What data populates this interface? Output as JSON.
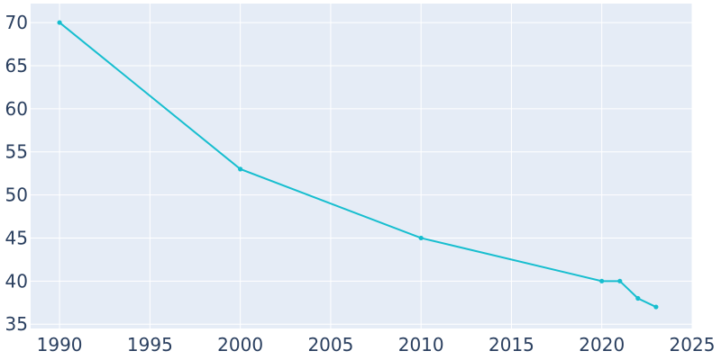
{
  "chart_data": {
    "type": "line",
    "title": "",
    "xlabel": "",
    "ylabel": "",
    "x": [
      1990,
      2000,
      2010,
      2020,
      2021,
      2022,
      2023
    ],
    "series": [
      {
        "values": [
          70,
          53,
          45,
          40,
          40,
          38,
          37
        ]
      }
    ],
    "xlim": [
      1988.4,
      2025
    ],
    "ylim": [
      34.5,
      72.2
    ],
    "xticks": [
      1990,
      1995,
      2000,
      2005,
      2010,
      2015,
      2020,
      2025
    ],
    "yticks": [
      35,
      40,
      45,
      50,
      55,
      60,
      65,
      70
    ],
    "grid": true,
    "legend": "none",
    "colors": {
      "plot_bg": "#e5ecf6",
      "line": "#17becf",
      "grid": "#ffffff",
      "text": "#2a3f5f"
    }
  }
}
